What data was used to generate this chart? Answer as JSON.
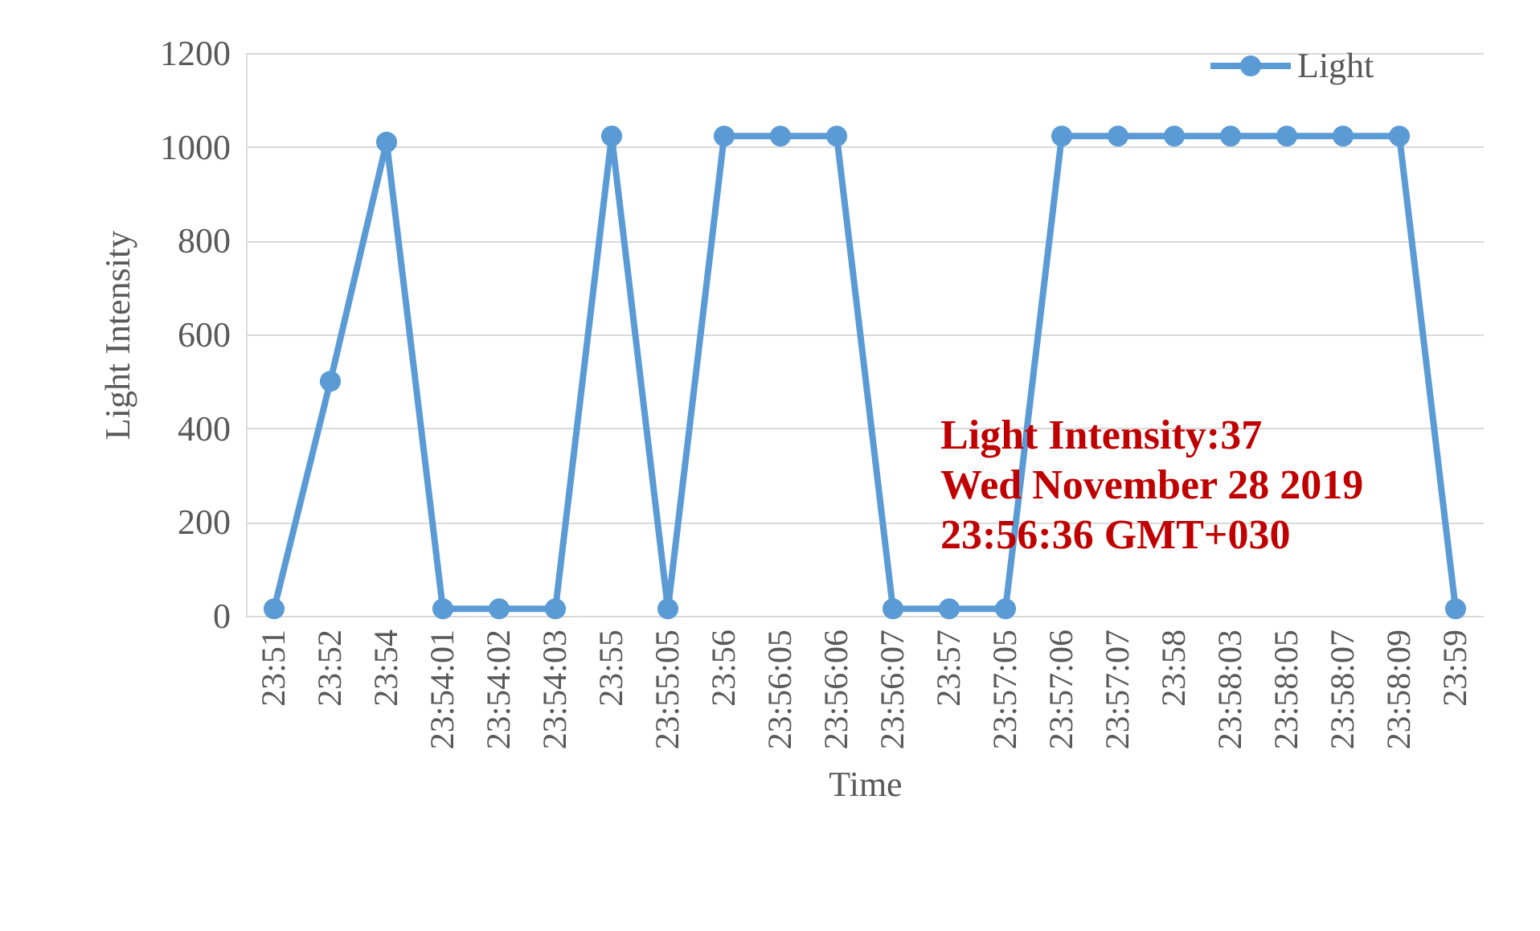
{
  "chart_data": {
    "type": "line",
    "xlabel": "Time",
    "ylabel": "Light Intensity",
    "categories": [
      "23:51",
      "23:52",
      "23:54",
      "23:54:01",
      "23:54:02",
      "23:54:03",
      "23:55",
      "23:55:05",
      "23:56",
      "23:56:05",
      "23:56:06",
      "23:56:07",
      "23:57",
      "23:57:05",
      "23:57:06",
      "23:57:07",
      "23:58",
      "23:58:03",
      "23:58:05",
      "23:58:07",
      "23:58:09",
      "23:59"
    ],
    "series": [
      {
        "name": "Light",
        "color": "#5b9bd5",
        "values": [
          15,
          500,
          1010,
          15,
          15,
          15,
          1023,
          15,
          1023,
          1023,
          1023,
          15,
          15,
          15,
          1023,
          1023,
          1023,
          1023,
          1023,
          1023,
          1023,
          15
        ]
      }
    ],
    "ylim": [
      0,
      1200
    ],
    "yticks": [
      0,
      200,
      400,
      600,
      800,
      1000,
      1200
    ],
    "grid": "y",
    "legend": "top right",
    "marker": "circle",
    "line_style": "solid",
    "annotations": [
      "Light Intensity:37\nWed November 28 2019\n23:56:36 GMT+030"
    ]
  }
}
